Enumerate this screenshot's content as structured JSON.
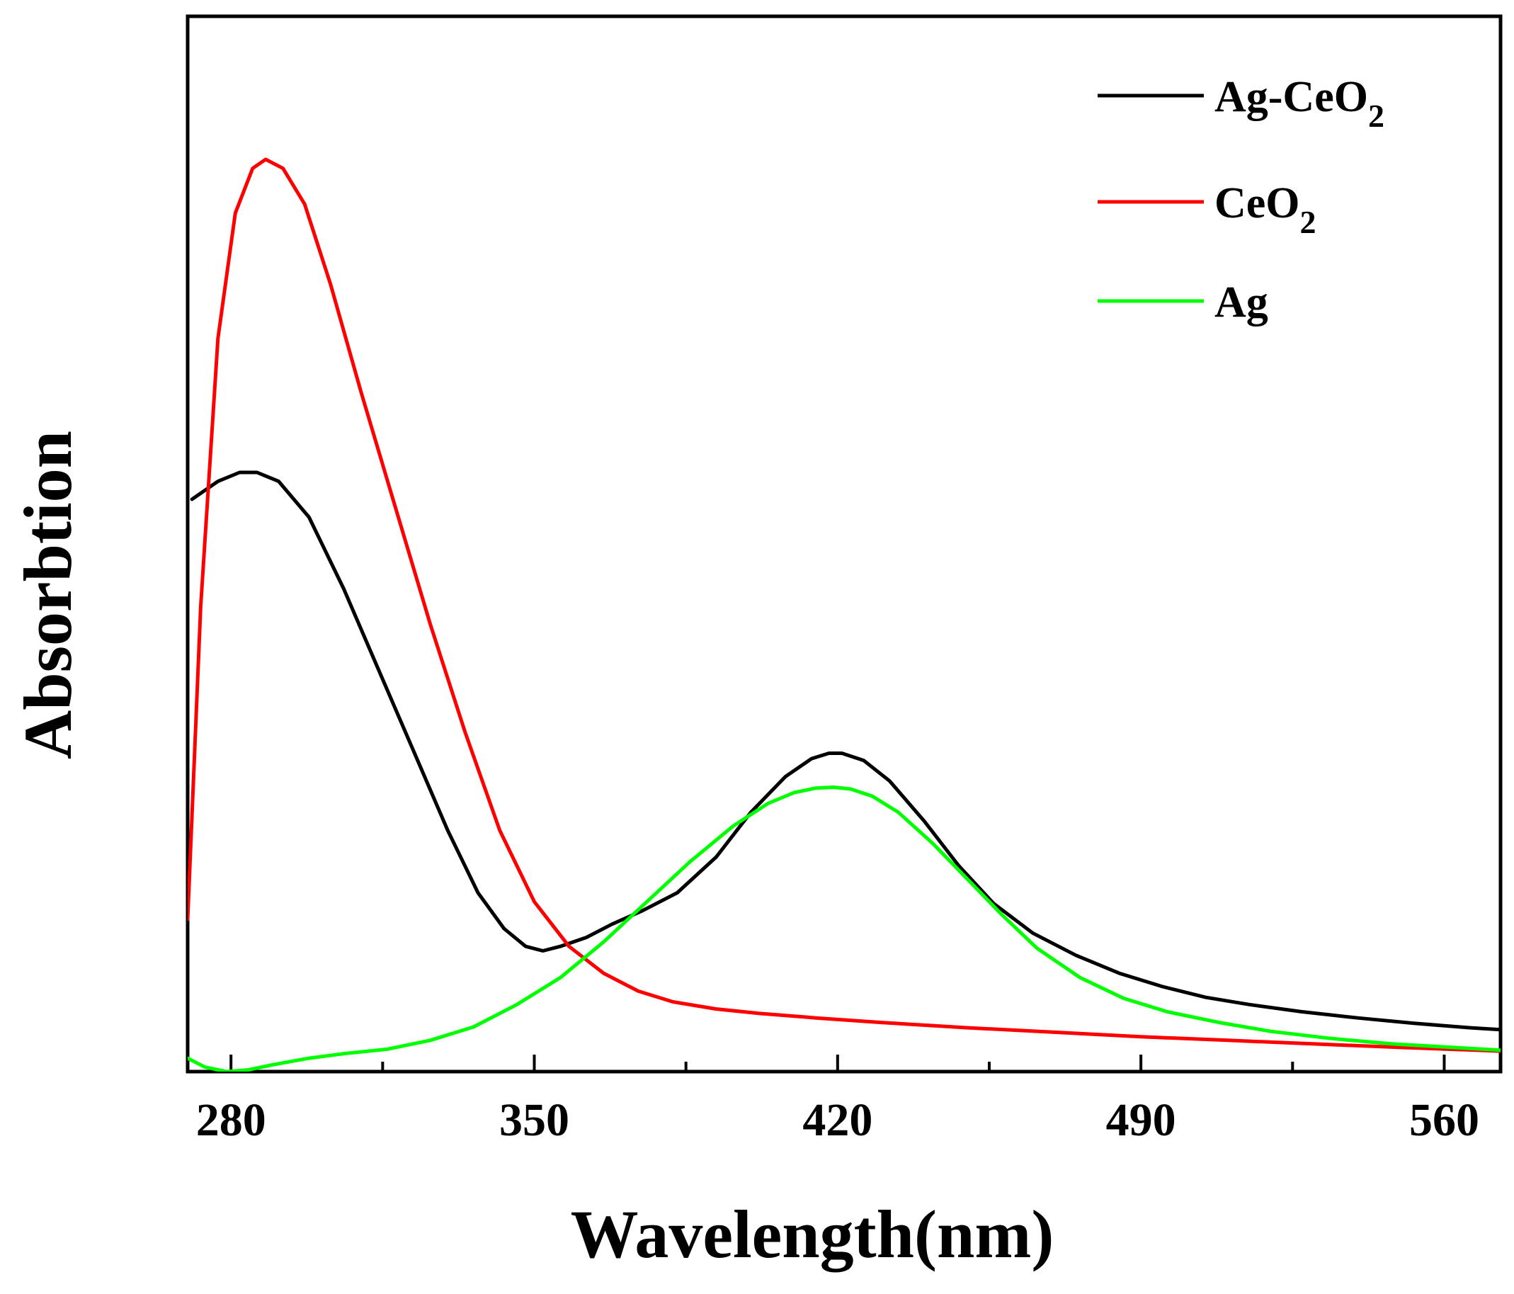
{
  "chart_data": {
    "type": "line",
    "title": "",
    "xlabel": "Wavelength(nm)",
    "ylabel": "Absorbtion",
    "xlim": [
      270,
      573
    ],
    "ylim": [
      -0.02,
      1.16
    ],
    "y_ticks_shown": false,
    "x_ticks": [
      280,
      350,
      420,
      490,
      560
    ],
    "x_tick_labels": [
      "280",
      "350",
      "420",
      "490",
      "560"
    ],
    "x_minor_ticks": [
      315,
      385,
      455,
      525
    ],
    "legend_position": "top-right",
    "grid": false,
    "series": [
      {
        "name": "Ag-CeO2",
        "label_main": "Ag-CeO",
        "label_sub": "2",
        "color": "#000000",
        "x": [
          271,
          277,
          282,
          286,
          291,
          298,
          306,
          314,
          322,
          330,
          337,
          343,
          348,
          352,
          356,
          362,
          368,
          375,
          383,
          392,
          400,
          408,
          414,
          418,
          421,
          426,
          432,
          440,
          448,
          456,
          465,
          475,
          485,
          495,
          505,
          515,
          527,
          540,
          553,
          566,
          573
        ],
        "y": [
          0.62,
          0.64,
          0.65,
          0.65,
          0.64,
          0.6,
          0.52,
          0.43,
          0.34,
          0.25,
          0.18,
          0.14,
          0.12,
          0.115,
          0.12,
          0.13,
          0.145,
          0.16,
          0.18,
          0.22,
          0.27,
          0.31,
          0.33,
          0.336,
          0.336,
          0.328,
          0.305,
          0.26,
          0.21,
          0.168,
          0.135,
          0.11,
          0.09,
          0.075,
          0.063,
          0.055,
          0.047,
          0.04,
          0.034,
          0.029,
          0.027
        ]
      },
      {
        "name": "CeO2",
        "label_main": "CeO",
        "label_sub": "2",
        "color": "#ff0000",
        "x": [
          270,
          273,
          277,
          281,
          285,
          288,
          292,
          297,
          303,
          310,
          318,
          326,
          334,
          342,
          350,
          358,
          366,
          374,
          382,
          392,
          402,
          415,
          430,
          450,
          470,
          490,
          510,
          530,
          550,
          573
        ],
        "y": [
          0.15,
          0.5,
          0.8,
          0.94,
          0.99,
          1.0,
          0.99,
          0.95,
          0.86,
          0.74,
          0.61,
          0.48,
          0.36,
          0.25,
          0.17,
          0.12,
          0.09,
          0.07,
          0.058,
          0.05,
          0.045,
          0.04,
          0.035,
          0.029,
          0.024,
          0.019,
          0.015,
          0.011,
          0.007,
          0.003
        ]
      },
      {
        "name": "Ag",
        "label_main": "Ag",
        "label_sub": "",
        "color": "#00ff00",
        "x": [
          270,
          274,
          279,
          284,
          290,
          298,
          306,
          316,
          326,
          336,
          346,
          356,
          366,
          376,
          386,
          396,
          404,
          410,
          415,
          419,
          423,
          428,
          434,
          442,
          450,
          458,
          466,
          476,
          486,
          496,
          508,
          520,
          534,
          548,
          562,
          573
        ],
        "y": [
          -0.005,
          -0.015,
          -0.02,
          -0.018,
          -0.012,
          -0.005,
          0.0,
          0.005,
          0.015,
          0.03,
          0.055,
          0.085,
          0.125,
          0.17,
          0.215,
          0.255,
          0.28,
          0.292,
          0.297,
          0.298,
          0.296,
          0.288,
          0.27,
          0.235,
          0.195,
          0.155,
          0.118,
          0.085,
          0.062,
          0.047,
          0.035,
          0.025,
          0.017,
          0.011,
          0.007,
          0.004
        ]
      }
    ]
  }
}
